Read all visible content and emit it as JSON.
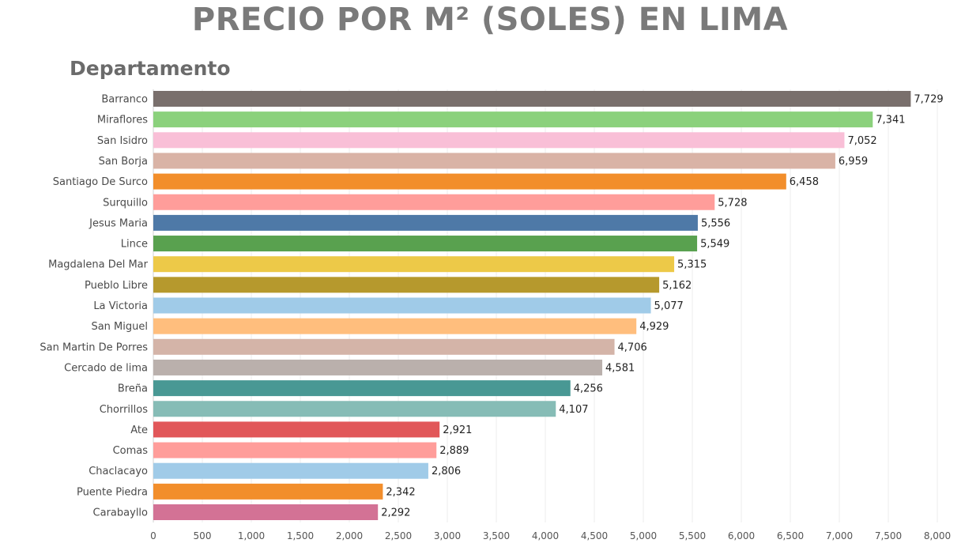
{
  "chart_data": {
    "type": "bar",
    "orientation": "horizontal",
    "title": "PRECIO POR M²  (SOLES) EN LIMA",
    "ylabel": "Departamento",
    "xlabel": "",
    "xlim": [
      0,
      8000
    ],
    "xticks": [
      0,
      500,
      1000,
      1500,
      2000,
      2500,
      3000,
      3500,
      4000,
      4500,
      5000,
      5500,
      6000,
      6500,
      7000,
      7500,
      8000
    ],
    "xtick_labels": [
      "0",
      "500",
      "1,000",
      "1,500",
      "2,000",
      "2,500",
      "3,000",
      "3,500",
      "4,000",
      "4,500",
      "5,000",
      "5,500",
      "6,000",
      "6,500",
      "7,000",
      "7,500",
      "8,000"
    ],
    "grid": true,
    "categories": [
      "Barranco",
      "Miraflores",
      "San Isidro",
      "San Borja",
      "Santiago De Surco",
      "Surquillo",
      "Jesus Maria",
      "Lince",
      "Magdalena Del Mar",
      "Pueblo Libre",
      "La Victoria",
      "San Miguel",
      "San Martin De Porres",
      "Cercado de lima",
      "Breña",
      "Chorrillos",
      "Ate",
      "Comas",
      "Chaclacayo",
      "Puente Piedra",
      "Carabayllo"
    ],
    "values": [
      7729,
      7341,
      7052,
      6959,
      6458,
      5728,
      5556,
      5549,
      5315,
      5162,
      5077,
      4929,
      4706,
      4581,
      4256,
      4107,
      2921,
      2889,
      2806,
      2342,
      2292
    ],
    "value_labels": [
      "7,729",
      "7,341",
      "7,052",
      "6,959",
      "6,458",
      "5,728",
      "5,556",
      "5,549",
      "5,315",
      "5,162",
      "5,077",
      "4,929",
      "4,706",
      "4,581",
      "4,256",
      "4,107",
      "2,921",
      "2,889",
      "2,806",
      "2,342",
      "2,292"
    ],
    "colors": [
      "#796f6c",
      "#8bd17c",
      "#f9bfd7",
      "#d9b3a6",
      "#f28e2b",
      "#ff9d9a",
      "#4e79a7",
      "#59a14f",
      "#edc948",
      "#b6992d",
      "#a0cbe8",
      "#ffbe7d",
      "#d4b4a8",
      "#bab0ac",
      "#499894",
      "#86bcb6",
      "#e15759",
      "#ff9d9a",
      "#a0cbe8",
      "#f28e2b",
      "#d37295"
    ]
  }
}
